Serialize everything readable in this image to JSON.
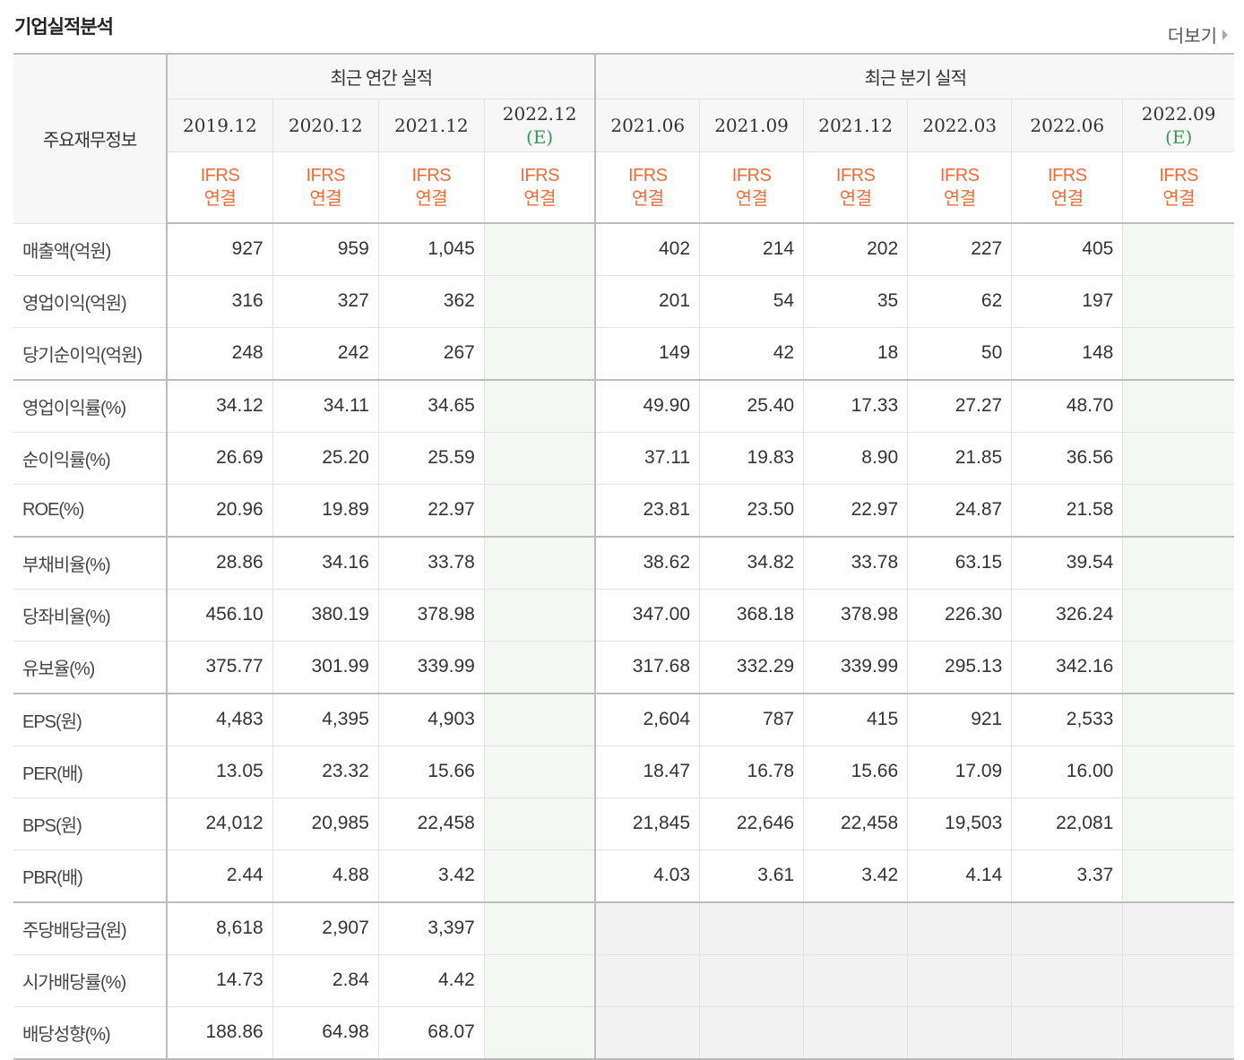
{
  "section": {
    "title": "기업실적분석",
    "more_label": "더보기"
  },
  "table": {
    "row_header": "주요재무정보",
    "groups": {
      "annual": "최근 연간 실적",
      "quarterly": "최근 분기 실적"
    },
    "annual_periods": [
      {
        "date": "2019.12",
        "est": ""
      },
      {
        "date": "2020.12",
        "est": ""
      },
      {
        "date": "2021.12",
        "est": ""
      },
      {
        "date": "2022.12",
        "est": "(E)"
      }
    ],
    "quarter_periods": [
      {
        "date": "2021.06",
        "est": ""
      },
      {
        "date": "2021.09",
        "est": ""
      },
      {
        "date": "2021.12",
        "est": ""
      },
      {
        "date": "2022.03",
        "est": ""
      },
      {
        "date": "2022.06",
        "est": ""
      },
      {
        "date": "2022.09",
        "est": "(E)"
      }
    ],
    "standard": {
      "line1": "IFRS",
      "line2": "연결"
    },
    "rows": [
      {
        "label": "매출액(억원)",
        "annual": [
          "927",
          "959",
          "1,045",
          ""
        ],
        "quarterly": [
          "402",
          "214",
          "202",
          "227",
          "405",
          ""
        ]
      },
      {
        "label": "영업이익(억원)",
        "annual": [
          "316",
          "327",
          "362",
          ""
        ],
        "quarterly": [
          "201",
          "54",
          "35",
          "62",
          "197",
          ""
        ]
      },
      {
        "label": "당기순이익(억원)",
        "annual": [
          "248",
          "242",
          "267",
          ""
        ],
        "quarterly": [
          "149",
          "42",
          "18",
          "50",
          "148",
          ""
        ]
      },
      {
        "label": "영업이익률(%)",
        "annual": [
          "34.12",
          "34.11",
          "34.65",
          ""
        ],
        "quarterly": [
          "49.90",
          "25.40",
          "17.33",
          "27.27",
          "48.70",
          ""
        ]
      },
      {
        "label": "순이익률(%)",
        "annual": [
          "26.69",
          "25.20",
          "25.59",
          ""
        ],
        "quarterly": [
          "37.11",
          "19.83",
          "8.90",
          "21.85",
          "36.56",
          ""
        ]
      },
      {
        "label": "ROE(%)",
        "annual": [
          "20.96",
          "19.89",
          "22.97",
          ""
        ],
        "quarterly": [
          "23.81",
          "23.50",
          "22.97",
          "24.87",
          "21.58",
          ""
        ]
      },
      {
        "label": "부채비율(%)",
        "annual": [
          "28.86",
          "34.16",
          "33.78",
          ""
        ],
        "quarterly": [
          "38.62",
          "34.82",
          "33.78",
          "63.15",
          "39.54",
          ""
        ]
      },
      {
        "label": "당좌비율(%)",
        "annual": [
          "456.10",
          "380.19",
          "378.98",
          ""
        ],
        "quarterly": [
          "347.00",
          "368.18",
          "378.98",
          "226.30",
          "326.24",
          ""
        ]
      },
      {
        "label": "유보율(%)",
        "annual": [
          "375.77",
          "301.99",
          "339.99",
          ""
        ],
        "quarterly": [
          "317.68",
          "332.29",
          "339.99",
          "295.13",
          "342.16",
          ""
        ]
      },
      {
        "label": "EPS(원)",
        "annual": [
          "4,483",
          "4,395",
          "4,903",
          ""
        ],
        "quarterly": [
          "2,604",
          "787",
          "415",
          "921",
          "2,533",
          ""
        ]
      },
      {
        "label": "PER(배)",
        "annual": [
          "13.05",
          "23.32",
          "15.66",
          ""
        ],
        "quarterly": [
          "18.47",
          "16.78",
          "15.66",
          "17.09",
          "16.00",
          ""
        ]
      },
      {
        "label": "BPS(원)",
        "annual": [
          "24,012",
          "20,985",
          "22,458",
          ""
        ],
        "quarterly": [
          "21,845",
          "22,646",
          "22,458",
          "19,503",
          "22,081",
          ""
        ]
      },
      {
        "label": "PBR(배)",
        "annual": [
          "2.44",
          "4.88",
          "3.42",
          ""
        ],
        "quarterly": [
          "4.03",
          "3.61",
          "3.42",
          "4.14",
          "3.37",
          ""
        ]
      },
      {
        "label": "주당배당금(원)",
        "annual": [
          "8,618",
          "2,907",
          "3,397",
          ""
        ],
        "quarterly": [
          "",
          "",
          "",
          "",
          "",
          ""
        ]
      },
      {
        "label": "시가배당률(%)",
        "annual": [
          "14.73",
          "2.84",
          "4.42",
          ""
        ],
        "quarterly": [
          "",
          "",
          "",
          "",
          "",
          ""
        ]
      },
      {
        "label": "배당성향(%)",
        "annual": [
          "188.86",
          "64.98",
          "68.07",
          ""
        ],
        "quarterly": [
          "",
          "",
          "",
          "",
          "",
          ""
        ]
      }
    ]
  }
}
